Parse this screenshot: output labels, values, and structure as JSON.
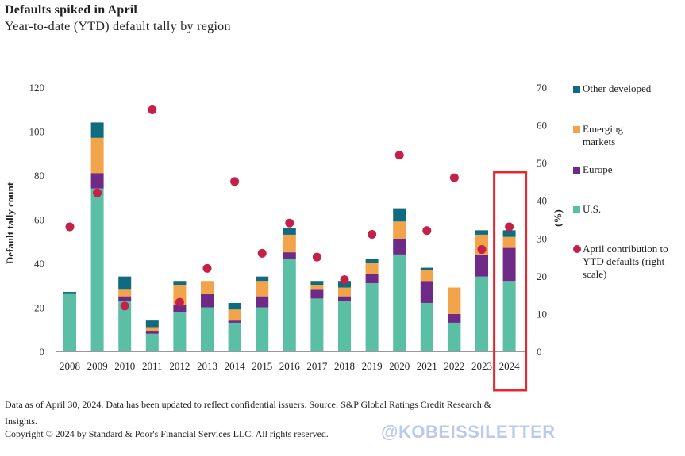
{
  "header": {
    "title": "Defaults spiked in April",
    "subtitle": "Year-to-date (YTD) default tally by region"
  },
  "footer": {
    "note": "Data as of April 30, 2024. Data has been updated to reflect confidential issuers. Source: S&P Global Ratings Credit Research & Insights.",
    "copyright": "Copyright © 2024 by Standard & Poor's Financial Services LLC. All rights reserved.",
    "watermark": "@KOBEISSILETTER"
  },
  "colors": {
    "us": "#5bbfa6",
    "europe": "#6e2a86",
    "emerging": "#f2a44a",
    "other": "#0f6b80",
    "april": "#c42049",
    "highlight": "#e8262c",
    "axis": "#999999"
  },
  "chart_data": {
    "type": "bar",
    "stacked": true,
    "title": "Defaults spiked in April",
    "subtitle": "Year-to-date (YTD) default tally by region",
    "ylabel": "Default tally count",
    "y2label": "(%)",
    "ylim": [
      0,
      120
    ],
    "y2lim": [
      0,
      70
    ],
    "yticks": [
      0,
      20,
      40,
      60,
      80,
      100,
      120
    ],
    "y2ticks": [
      0,
      10,
      20,
      30,
      40,
      50,
      60,
      70
    ],
    "categories": [
      "2008",
      "2009",
      "2010",
      "2011",
      "2012",
      "2013",
      "2014",
      "2015",
      "2016",
      "2017",
      "2018",
      "2019",
      "2020",
      "2021",
      "2022",
      "2023",
      "2024"
    ],
    "series": [
      {
        "name": "U.S.",
        "key": "us",
        "values": [
          26,
          74,
          23,
          8,
          18,
          20,
          13,
          20,
          42,
          24,
          23,
          31,
          44,
          22,
          13,
          34,
          32
        ]
      },
      {
        "name": "Europe",
        "key": "europe",
        "values": [
          0,
          7,
          2,
          1,
          3,
          6,
          1,
          5,
          3,
          4,
          2,
          4,
          7,
          10,
          4,
          10,
          15
        ]
      },
      {
        "name": "Emerging markets",
        "key": "emerging",
        "values": [
          0,
          16,
          3,
          2,
          9,
          6,
          5,
          7,
          8,
          2,
          4,
          5,
          8,
          5,
          12,
          9,
          5
        ]
      },
      {
        "name": "Other developed",
        "key": "other",
        "values": [
          1,
          7,
          6,
          3,
          2,
          0,
          3,
          2,
          3,
          2,
          3,
          2,
          6,
          1,
          0,
          2,
          3
        ]
      }
    ],
    "line_series": {
      "name": "April contribution to YTD defaults (right scale)",
      "axis": "right",
      "values": [
        33,
        42,
        12,
        64,
        13,
        22,
        45,
        26,
        34,
        25,
        19,
        31,
        52,
        32,
        46,
        27,
        33
      ]
    },
    "highlight": "2024",
    "legend": [
      "Other developed",
      "Emerging markets",
      "Europe",
      "U.S.",
      "April contribution to YTD defaults (right scale)"
    ],
    "legend_position": "right"
  }
}
